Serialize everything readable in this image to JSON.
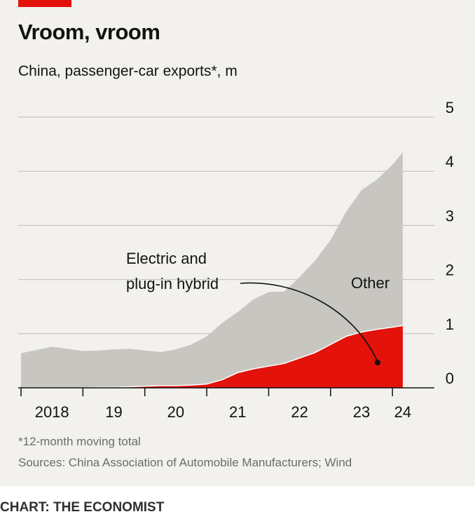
{
  "header": {
    "title": "Vroom, vroom",
    "subtitle": "China, passenger-car exports*, m"
  },
  "footer": {
    "footnote": "*12-month moving total",
    "sources": "Sources: China Association of Automobile Manufacturers; Wind",
    "credit": "CHART: THE ECONOMIST"
  },
  "colors": {
    "accent": "#e3120b",
    "other_area": "#c8c6c0",
    "grid": "#bdbbb5"
  },
  "chart_data": {
    "type": "area",
    "stacked": true,
    "ylim": [
      0,
      5
    ],
    "yticks": [
      "0",
      "1",
      "2",
      "3",
      "4",
      "5"
    ],
    "xlabel": "",
    "ylabel": "",
    "xlim": [
      "2018-01",
      "2024-06"
    ],
    "xticks": [
      {
        "label": "2018",
        "date": "2018-07"
      },
      {
        "label": "19",
        "date": "2019-07"
      },
      {
        "label": "20",
        "date": "2020-07"
      },
      {
        "label": "21",
        "date": "2021-07"
      },
      {
        "label": "22",
        "date": "2022-07"
      },
      {
        "label": "23",
        "date": "2023-07"
      },
      {
        "label": "24",
        "date": "2024-03"
      }
    ],
    "grid": true,
    "x": [
      "2018-01",
      "2018-04",
      "2018-07",
      "2018-10",
      "2019-01",
      "2019-04",
      "2019-07",
      "2019-10",
      "2020-01",
      "2020-04",
      "2020-07",
      "2020-10",
      "2021-01",
      "2021-04",
      "2021-07",
      "2021-10",
      "2022-01",
      "2022-04",
      "2022-07",
      "2022-10",
      "2023-01",
      "2023-04",
      "2023-07",
      "2023-10",
      "2024-01",
      "2024-03"
    ],
    "series": [
      {
        "name": "Electric and plug-in hybrid",
        "color": "#e3120b",
        "values": [
          0.0,
          0.0,
          0.0,
          0.0,
          0.0,
          0.01,
          0.01,
          0.02,
          0.03,
          0.04,
          0.04,
          0.05,
          0.07,
          0.15,
          0.28,
          0.35,
          0.4,
          0.45,
          0.55,
          0.65,
          0.8,
          0.95,
          1.03,
          1.08,
          1.12,
          1.15
        ]
      },
      {
        "name": "Other",
        "color": "#c8c6c0",
        "values": [
          0.64,
          0.7,
          0.76,
          0.72,
          0.68,
          0.68,
          0.7,
          0.7,
          0.66,
          0.62,
          0.67,
          0.75,
          0.88,
          1.05,
          1.12,
          1.28,
          1.37,
          1.33,
          1.5,
          1.7,
          1.93,
          2.3,
          2.62,
          2.77,
          3.0,
          3.2
        ]
      }
    ],
    "annotations": [
      {
        "text_lines": [
          "Electric and",
          "plug-in hybrid"
        ],
        "series": "Electric and plug-in hybrid"
      },
      {
        "text_lines": [
          "Other"
        ],
        "series": "Other"
      }
    ]
  }
}
